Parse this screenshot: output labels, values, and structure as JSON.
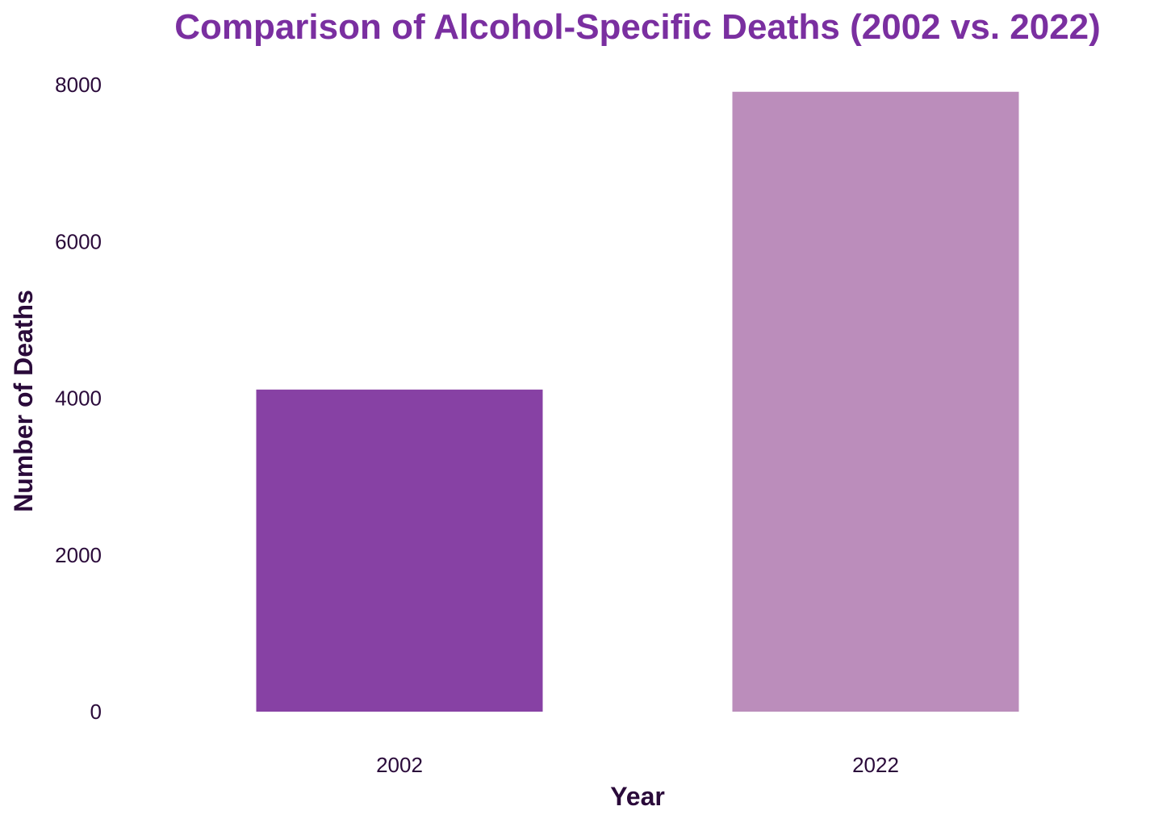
{
  "chart_data": {
    "type": "bar",
    "title": "Comparison of Alcohol-Specific Deaths (2002 vs. 2022)",
    "xlabel": "Year",
    "ylabel": "Number of Deaths",
    "categories": [
      "2002",
      "2022"
    ],
    "values": [
      4110,
      7910
    ],
    "ylim": [
      0,
      8000
    ],
    "yticks": [
      0,
      2000,
      4000,
      6000,
      8000
    ],
    "grid": false,
    "legend": "none"
  },
  "colors": {
    "title": "#7a2fa0",
    "axis_text": "#2a0a3a",
    "bars": [
      "#8741a4",
      "#bb8dbb"
    ]
  }
}
